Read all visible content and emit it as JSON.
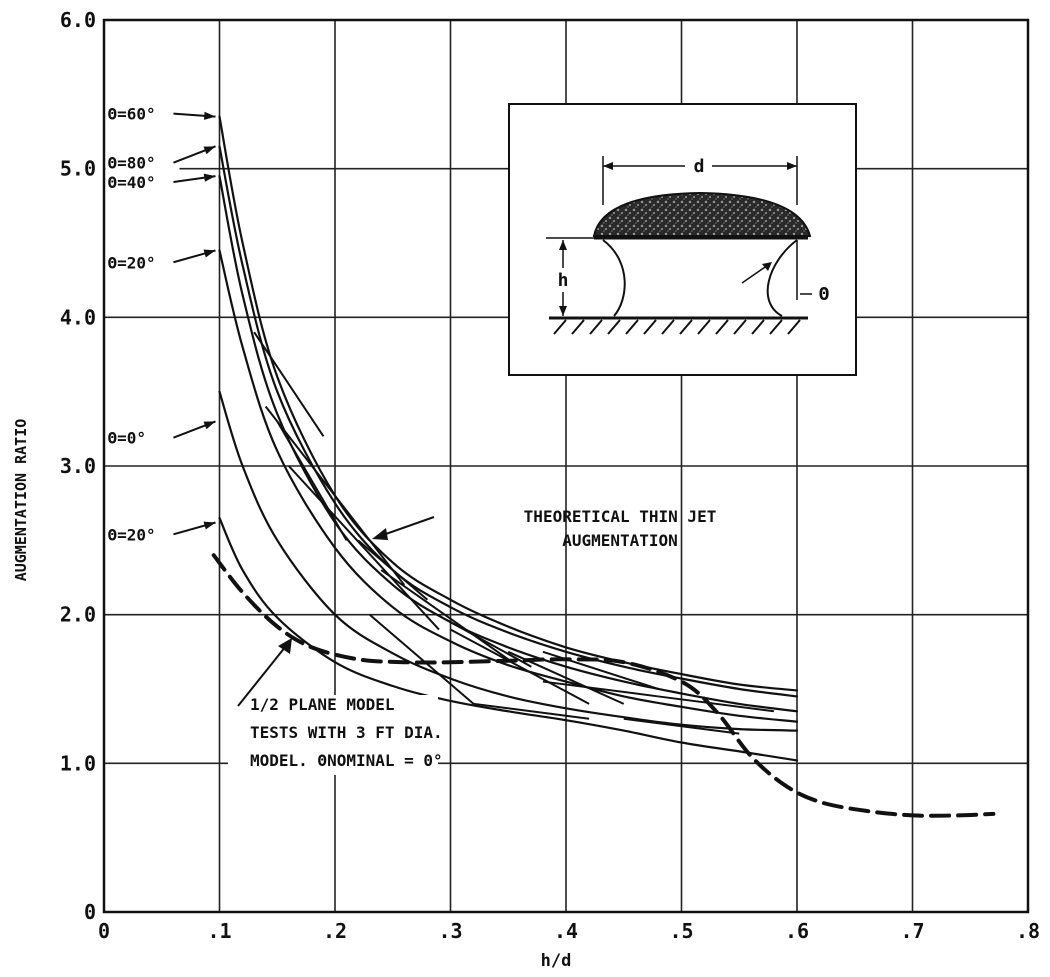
{
  "chart_data": {
    "type": "line",
    "xlabel": "h/d",
    "ylabel": "AUGMENTATION RATIO",
    "xlim": [
      0,
      0.8
    ],
    "ylim": [
      0,
      6.0
    ],
    "grid": true,
    "x_ticks": [
      {
        "v": 0,
        "label": "0"
      },
      {
        "v": 0.1,
        "label": ".1"
      },
      {
        "v": 0.2,
        "label": ".2"
      },
      {
        "v": 0.3,
        "label": ".3"
      },
      {
        "v": 0.4,
        "label": ".4"
      },
      {
        "v": 0.5,
        "label": ".5"
      },
      {
        "v": 0.6,
        "label": ".6"
      },
      {
        "v": 0.7,
        "label": ".7"
      },
      {
        "v": 0.8,
        "label": ".8"
      }
    ],
    "y_ticks": [
      {
        "v": 0,
        "label": "0"
      },
      {
        "v": 1,
        "label": "1.0"
      },
      {
        "v": 2,
        "label": "2.0"
      },
      {
        "v": 3,
        "label": "3.0"
      },
      {
        "v": 4,
        "label": "4.0"
      },
      {
        "v": 5,
        "label": "5.0"
      },
      {
        "v": 6,
        "label": "6.0"
      }
    ],
    "series": [
      {
        "name": "Θ=60°",
        "style": "solid",
        "x": [
          0.1,
          0.12,
          0.15,
          0.2,
          0.25,
          0.3,
          0.35,
          0.4,
          0.45,
          0.5,
          0.55,
          0.6
        ],
        "y": [
          5.35,
          4.5,
          3.6,
          2.8,
          2.35,
          2.1,
          1.92,
          1.78,
          1.68,
          1.6,
          1.53,
          1.49
        ]
      },
      {
        "name": "Θ=80°",
        "style": "solid",
        "x": [
          0.1,
          0.12,
          0.15,
          0.2,
          0.25,
          0.3,
          0.35,
          0.4,
          0.45,
          0.5,
          0.55,
          0.6
        ],
        "y": [
          5.15,
          4.35,
          3.5,
          2.75,
          2.3,
          2.05,
          1.88,
          1.75,
          1.65,
          1.57,
          1.5,
          1.45
        ]
      },
      {
        "name": "Θ=40°",
        "style": "solid",
        "x": [
          0.1,
          0.12,
          0.15,
          0.2,
          0.25,
          0.3,
          0.35,
          0.4,
          0.45,
          0.5,
          0.55,
          0.6
        ],
        "y": [
          4.95,
          4.15,
          3.35,
          2.62,
          2.2,
          1.95,
          1.78,
          1.65,
          1.55,
          1.47,
          1.4,
          1.35
        ]
      },
      {
        "name": "Θ=20°",
        "style": "solid",
        "x": [
          0.1,
          0.12,
          0.15,
          0.2,
          0.25,
          0.3,
          0.35,
          0.4,
          0.45,
          0.5,
          0.55,
          0.6
        ],
        "y": [
          4.45,
          3.8,
          3.1,
          2.45,
          2.05,
          1.82,
          1.66,
          1.55,
          1.45,
          1.38,
          1.32,
          1.28
        ]
      },
      {
        "name": "Θ=0°",
        "style": "solid",
        "x": [
          0.1,
          0.12,
          0.15,
          0.2,
          0.25,
          0.3,
          0.35,
          0.4,
          0.45,
          0.5,
          0.55,
          0.6
        ],
        "y": [
          3.5,
          3.0,
          2.5,
          2.0,
          1.74,
          1.57,
          1.45,
          1.37,
          1.31,
          1.26,
          1.23,
          1.22
        ]
      },
      {
        "name": "Θ=20°",
        "style": "solid",
        "x": [
          0.1,
          0.12,
          0.15,
          0.2,
          0.25,
          0.3,
          0.35,
          0.4,
          0.45,
          0.5,
          0.55,
          0.6
        ],
        "y": [
          2.65,
          2.3,
          1.98,
          1.68,
          1.52,
          1.42,
          1.35,
          1.29,
          1.22,
          1.14,
          1.08,
          1.02
        ]
      },
      {
        "name": "Theoretical thin jet augmentation",
        "style": "dashed",
        "x": [
          0.095,
          0.12,
          0.15,
          0.18,
          0.22,
          0.26,
          0.3,
          0.35,
          0.4,
          0.45,
          0.5,
          0.53,
          0.56,
          0.59,
          0.62,
          0.66,
          0.7,
          0.74,
          0.77
        ],
        "y": [
          2.4,
          2.15,
          1.92,
          1.78,
          1.7,
          1.68,
          1.68,
          1.69,
          1.7,
          1.68,
          1.55,
          1.35,
          1.05,
          0.85,
          0.74,
          0.68,
          0.65,
          0.65,
          0.66
        ]
      }
    ],
    "segments": [
      {
        "x": [
          0.14,
          0.2
        ],
        "y": [
          3.4,
          2.8
        ]
      },
      {
        "x": [
          0.13,
          0.19
        ],
        "y": [
          3.9,
          3.2
        ]
      },
      {
        "x": [
          0.16,
          0.29
        ],
        "y": [
          3.0,
          1.9
        ]
      },
      {
        "x": [
          0.15,
          0.21
        ],
        "y": [
          3.3,
          2.5
        ]
      },
      {
        "x": [
          0.2,
          0.26
        ],
        "y": [
          2.8,
          2.2
        ]
      },
      {
        "x": [
          0.22,
          0.28
        ],
        "y": [
          2.5,
          2.1
        ]
      },
      {
        "x": [
          0.24,
          0.35
        ],
        "y": [
          2.3,
          1.7
        ]
      },
      {
        "x": [
          0.3,
          0.42
        ],
        "y": [
          1.9,
          1.4
        ]
      },
      {
        "x": [
          0.35,
          0.45
        ],
        "y": [
          1.75,
          1.4
        ]
      },
      {
        "x": [
          0.38,
          0.48
        ],
        "y": [
          1.75,
          1.5
        ]
      },
      {
        "x": [
          0.32,
          0.42
        ],
        "y": [
          1.4,
          1.3
        ]
      },
      {
        "x": [
          0.38,
          0.48
        ],
        "y": [
          1.55,
          1.45
        ]
      },
      {
        "x": [
          0.45,
          0.55
        ],
        "y": [
          1.3,
          1.2
        ]
      },
      {
        "x": [
          0.48,
          0.58
        ],
        "y": [
          1.45,
          1.35
        ]
      },
      {
        "x": [
          0.23,
          0.32
        ],
        "y": [
          2.0,
          1.4
        ]
      },
      {
        "x": [
          0.3,
          0.37
        ],
        "y": [
          1.95,
          1.65
        ]
      }
    ],
    "annotations": {
      "curve_labels": [
        {
          "text": "Θ=60°",
          "x": 0.003,
          "y": 5.33,
          "tip": [
            0.1,
            5.35
          ]
        },
        {
          "text": "Θ=80°",
          "x": 0.003,
          "y": 5.0,
          "tip": [
            0.1,
            5.15
          ]
        },
        {
          "text": "Θ=40°",
          "x": 0.003,
          "y": 4.87,
          "tip": [
            0.1,
            4.95
          ]
        },
        {
          "text": "Θ=20°",
          "x": 0.003,
          "y": 4.33,
          "tip": [
            0.1,
            4.45
          ]
        },
        {
          "text": "Θ=0°",
          "x": 0.003,
          "y": 3.15,
          "tip": [
            0.1,
            3.3
          ]
        },
        {
          "text": "Θ=20°",
          "x": 0.003,
          "y": 2.5,
          "tip": [
            0.1,
            2.62
          ]
        }
      ],
      "theory_label": [
        "THEORETICAL THIN JET",
        "AUGMENTATION"
      ],
      "model_label": [
        "1/2 PLANE MODEL",
        "TESTS WITH 3 FT DIA.",
        "MODEL.  ΘNOMINAL = 0°"
      ]
    },
    "inset": {
      "labels": {
        "d": "d",
        "h": "h",
        "theta": "Θ"
      }
    }
  }
}
